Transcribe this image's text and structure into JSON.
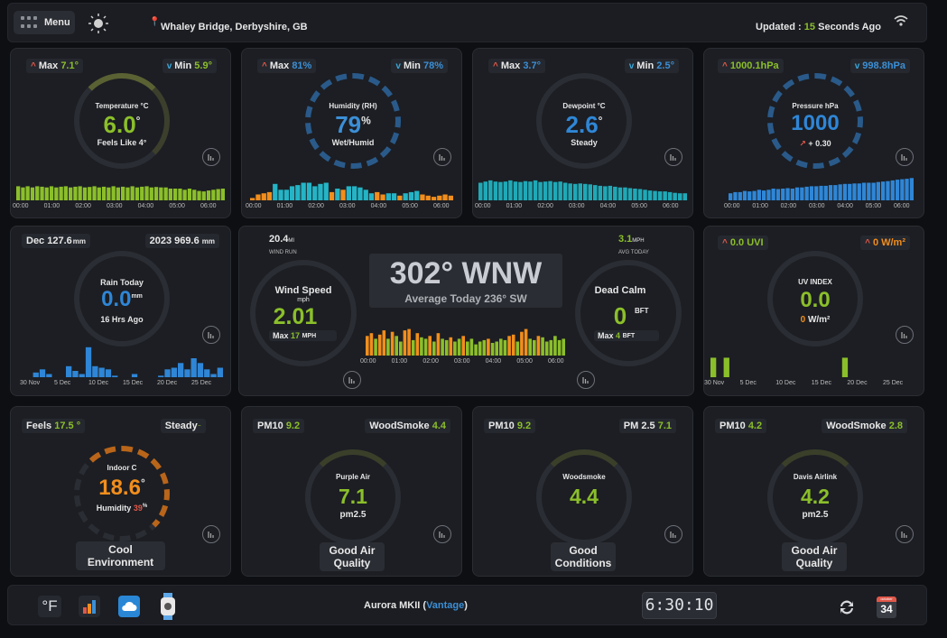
{
  "header": {
    "menu": "Menu",
    "location": "Whaley Bridge, Derbyshire, GB",
    "updated_prefix": "Updated :",
    "updated_value": "15",
    "updated_suffix": "Seconds Ago"
  },
  "temp": {
    "max_label": "Max",
    "max": "7.1°",
    "min_label": "Min",
    "min": "5.9°",
    "title": "Temperature °C",
    "value": "6.0",
    "unit": "°",
    "sub": "Feels Like 4°",
    "times": [
      "00:00",
      "01:00",
      "02:00",
      "03:00",
      "04:00",
      "05:00",
      "06:00"
    ],
    "bars": [
      0.6,
      0.55,
      0.6,
      0.55,
      0.6,
      0.58,
      0.55,
      0.6,
      0.55,
      0.58,
      0.6,
      0.55,
      0.58,
      0.6,
      0.55,
      0.57,
      0.6,
      0.55,
      0.58,
      0.55,
      0.6,
      0.55,
      0.58,
      0.55,
      0.6,
      0.55,
      0.58,
      0.6,
      0.55,
      0.57,
      0.55,
      0.55,
      0.5,
      0.5,
      0.5,
      0.45,
      0.5,
      0.45,
      0.4,
      0.38,
      0.42,
      0.45,
      0.48,
      0.5
    ]
  },
  "humidity": {
    "max_label": "Max",
    "max": "81%",
    "min_label": "Min",
    "min": "78%",
    "title": "Humidity (RH)",
    "value": "79",
    "unit": "%",
    "sub": "Wet/Humid",
    "times": [
      "00:00",
      "01:00",
      "02:00",
      "03:00",
      "04:00",
      "05:00",
      "06:00"
    ],
    "bars": [
      0.1,
      0.25,
      0.3,
      0.35,
      0.7,
      0.45,
      0.45,
      0.6,
      0.65,
      0.75,
      0.75,
      0.6,
      0.7,
      0.75,
      0.35,
      0.5,
      0.45,
      0.6,
      0.6,
      0.55,
      0.45,
      0.3,
      0.35,
      0.25,
      0.3,
      0.3,
      0.2,
      0.3,
      0.35,
      0.4,
      0.25,
      0.2,
      0.15,
      0.2,
      0.25,
      0.2
    ],
    "bar_colors": [
      "#f28e1c",
      "#f28e1c",
      "#f28e1c",
      "#f28e1c",
      "#24b4c6",
      "#24b4c6",
      "#24b4c6",
      "#24b4c6",
      "#24b4c6",
      "#24b4c6",
      "#24b4c6",
      "#24b4c6",
      "#24b4c6",
      "#24b4c6",
      "#f28e1c",
      "#24b4c6",
      "#f28e1c",
      "#24b4c6",
      "#24b4c6",
      "#24b4c6",
      "#24b4c6",
      "#24b4c6",
      "#f28e1c",
      "#f28e1c",
      "#24b4c6",
      "#24b4c6",
      "#f28e1c",
      "#24b4c6",
      "#24b4c6",
      "#24b4c6",
      "#f28e1c",
      "#f28e1c",
      "#f28e1c",
      "#f28e1c",
      "#f28e1c",
      "#f28e1c"
    ]
  },
  "dewpoint": {
    "max_label": "Max",
    "max": "3.7°",
    "min_label": "Min",
    "min": "2.5°",
    "title": "Dewpoint °C",
    "value": "2.6",
    "unit": "°",
    "sub": "Steady",
    "times": [
      "00:00",
      "01:00",
      "02:00",
      "03:00",
      "04:00",
      "05:00",
      "06:00"
    ],
    "bars": [
      0.75,
      0.8,
      0.85,
      0.8,
      0.78,
      0.8,
      0.85,
      0.8,
      0.78,
      0.82,
      0.8,
      0.85,
      0.78,
      0.8,
      0.82,
      0.78,
      0.8,
      0.75,
      0.72,
      0.7,
      0.72,
      0.7,
      0.68,
      0.65,
      0.62,
      0.6,
      0.62,
      0.58,
      0.55,
      0.55,
      0.52,
      0.5,
      0.48,
      0.45,
      0.42,
      0.4,
      0.38,
      0.38,
      0.35,
      0.32,
      0.3,
      0.3
    ]
  },
  "pressure": {
    "max": "1000.1hPa",
    "min": "998.8hPa",
    "title": "Pressure hPa",
    "value": "1000",
    "sub": "+ 0.30",
    "times": [
      "00:00",
      "01:00",
      "02:00",
      "03:00",
      "04:00",
      "05:00",
      "06:00"
    ],
    "bars": [
      0.3,
      0.35,
      0.35,
      0.4,
      0.38,
      0.4,
      0.45,
      0.42,
      0.45,
      0.5,
      0.48,
      0.5,
      0.52,
      0.5,
      0.55,
      0.55,
      0.58,
      0.6,
      0.6,
      0.62,
      0.62,
      0.65,
      0.65,
      0.68,
      0.7,
      0.7,
      0.72,
      0.72,
      0.75,
      0.75,
      0.75,
      0.78,
      0.8,
      0.82,
      0.85,
      0.88,
      0.9,
      0.92,
      0.95
    ]
  },
  "rain": {
    "month_label": "Dec",
    "month": "127.6",
    "month_unit": "mm",
    "year_label": "2023",
    "year": "969.6",
    "year_unit": "mm",
    "title": "Rain Today",
    "value": "0.0",
    "unit": "mm",
    "sub": "16 Hrs Ago",
    "dates": [
      "30 Nov",
      "5 Dec",
      "10 Dec",
      "15 Dec",
      "20 Dec",
      "25 Dec"
    ],
    "bars": [
      0,
      0,
      0.15,
      0.25,
      0.1,
      0,
      0,
      0.35,
      0.2,
      0.1,
      0.95,
      0.35,
      0.3,
      0.25,
      0.05,
      0,
      0,
      0.1,
      0,
      0,
      0,
      0.05,
      0.25,
      0.3,
      0.45,
      0.25,
      0.6,
      0.45,
      0.25,
      0.1,
      0.3
    ]
  },
  "wind": {
    "run_value": "20.4",
    "run_unit": "MI",
    "run_label": "WIND RUN",
    "avg_value": "3.1",
    "avg_unit": "MPH",
    "avg_label": "AVG TODAY",
    "direction": "302° WNW",
    "avg_dir": "Average Today 236° SW",
    "speed_title": "Wind Speed",
    "speed_unit": "mph",
    "speed": "2.01",
    "max_label": "Max",
    "max": "17",
    "max_unit": "MPH",
    "calm_title": "Dead Calm",
    "beaufort": "0",
    "bft": "BFT",
    "bft_max_label": "Max",
    "bft_max": "4",
    "bft_max_unit": "BFT",
    "times": [
      "00:00",
      "01:00",
      "02:00",
      "03:00",
      "04:00",
      "05:00",
      "06:00"
    ],
    "bars": [
      0.7,
      0.8,
      0.6,
      0.75,
      0.9,
      0.6,
      0.85,
      0.7,
      0.5,
      0.9,
      0.95,
      0.55,
      0.8,
      0.65,
      0.6,
      0.7,
      0.5,
      0.8,
      0.6,
      0.55,
      0.65,
      0.5,
      0.6,
      0.7,
      0.5,
      0.6,
      0.4,
      0.5,
      0.55,
      0.6,
      0.45,
      0.5,
      0.6,
      0.55,
      0.7,
      0.75,
      0.5,
      0.85,
      0.95,
      0.6,
      0.55,
      0.7,
      0.65,
      0.5,
      0.55,
      0.7,
      0.55,
      0.6
    ],
    "bar_colors": [
      "#f28e1c",
      "#f28e1c",
      "#8bbf2a",
      "#f28e1c",
      "#f28e1c",
      "#8bbf2a",
      "#f28e1c",
      "#8bbf2a",
      "#8bbf2a",
      "#f28e1c",
      "#f28e1c",
      "#8bbf2a",
      "#f28e1c",
      "#8bbf2a",
      "#8bbf2a",
      "#f28e1c",
      "#8bbf2a",
      "#f28e1c",
      "#8bbf2a",
      "#8bbf2a",
      "#f28e1c",
      "#8bbf2a",
      "#8bbf2a",
      "#f28e1c",
      "#8bbf2a",
      "#8bbf2a",
      "#8bbf2a",
      "#8bbf2a",
      "#8bbf2a",
      "#f28e1c",
      "#8bbf2a",
      "#8bbf2a",
      "#8bbf2a",
      "#8bbf2a",
      "#f28e1c",
      "#f28e1c",
      "#8bbf2a",
      "#f28e1c",
      "#f28e1c",
      "#8bbf2a",
      "#8bbf2a",
      "#f28e1c",
      "#8bbf2a",
      "#8bbf2a",
      "#8bbf2a",
      "#8bbf2a",
      "#8bbf2a",
      "#8bbf2a"
    ]
  },
  "uv": {
    "uvi": "0.0 UVI",
    "solar": "0 W/m²",
    "title": "UV INDEX",
    "value": "0.0",
    "solar_value": "0",
    "solar_unit": "W/m²",
    "dates": [
      "30 Nov",
      "5 Dec",
      "10 Dec",
      "15 Dec",
      "20 Dec",
      "25 Dec"
    ],
    "bars": [
      0.8,
      0,
      0.8,
      0,
      0,
      0,
      0,
      0,
      0,
      0,
      0,
      0,
      0,
      0,
      0,
      0,
      0,
      0,
      0,
      0,
      0.8,
      0,
      0,
      0,
      0,
      0,
      0,
      0,
      0,
      0,
      0
    ]
  },
  "indoor": {
    "feels_label": "Feels",
    "feels": "17.5",
    "feels_unit": "°",
    "trend": "Steady",
    "title": "Indoor C",
    "value": "18.6",
    "unit": "°",
    "hum_label": "Humidity",
    "hum": "39",
    "hum_unit": "%",
    "footer": [
      "Cool",
      "Environment"
    ]
  },
  "purpleair": {
    "pm10_label": "PM10",
    "pm10": "9.2",
    "ws_label": "WoodSmoke",
    "ws": "4.4",
    "title": "Purple Air",
    "value": "7.1",
    "sub": "pm2.5",
    "footer": [
      "Good Air",
      "Quality"
    ]
  },
  "woodsmoke": {
    "pm10_label": "PM10",
    "pm10": "9.2",
    "pm25_label": "PM 2.5",
    "pm25": "7.1",
    "title": "Woodsmoke",
    "value": "4.4",
    "footer": [
      "Good",
      "Conditions"
    ]
  },
  "airlink": {
    "pm10_label": "PM10",
    "pm10": "4.2",
    "ws_label": "WoodSmoke",
    "ws": "2.8",
    "title": "Davis Airlink",
    "value": "4.2",
    "sub": "pm2.5",
    "footer": [
      "Good Air",
      "Quality"
    ]
  },
  "footer": {
    "unit_toggle": "°F",
    "station": "Aurora MKII (",
    "station_model": "Vantage",
    "station_close": ")",
    "clock": "6:30:10",
    "cal_month": "october",
    "cal_day": "34"
  }
}
